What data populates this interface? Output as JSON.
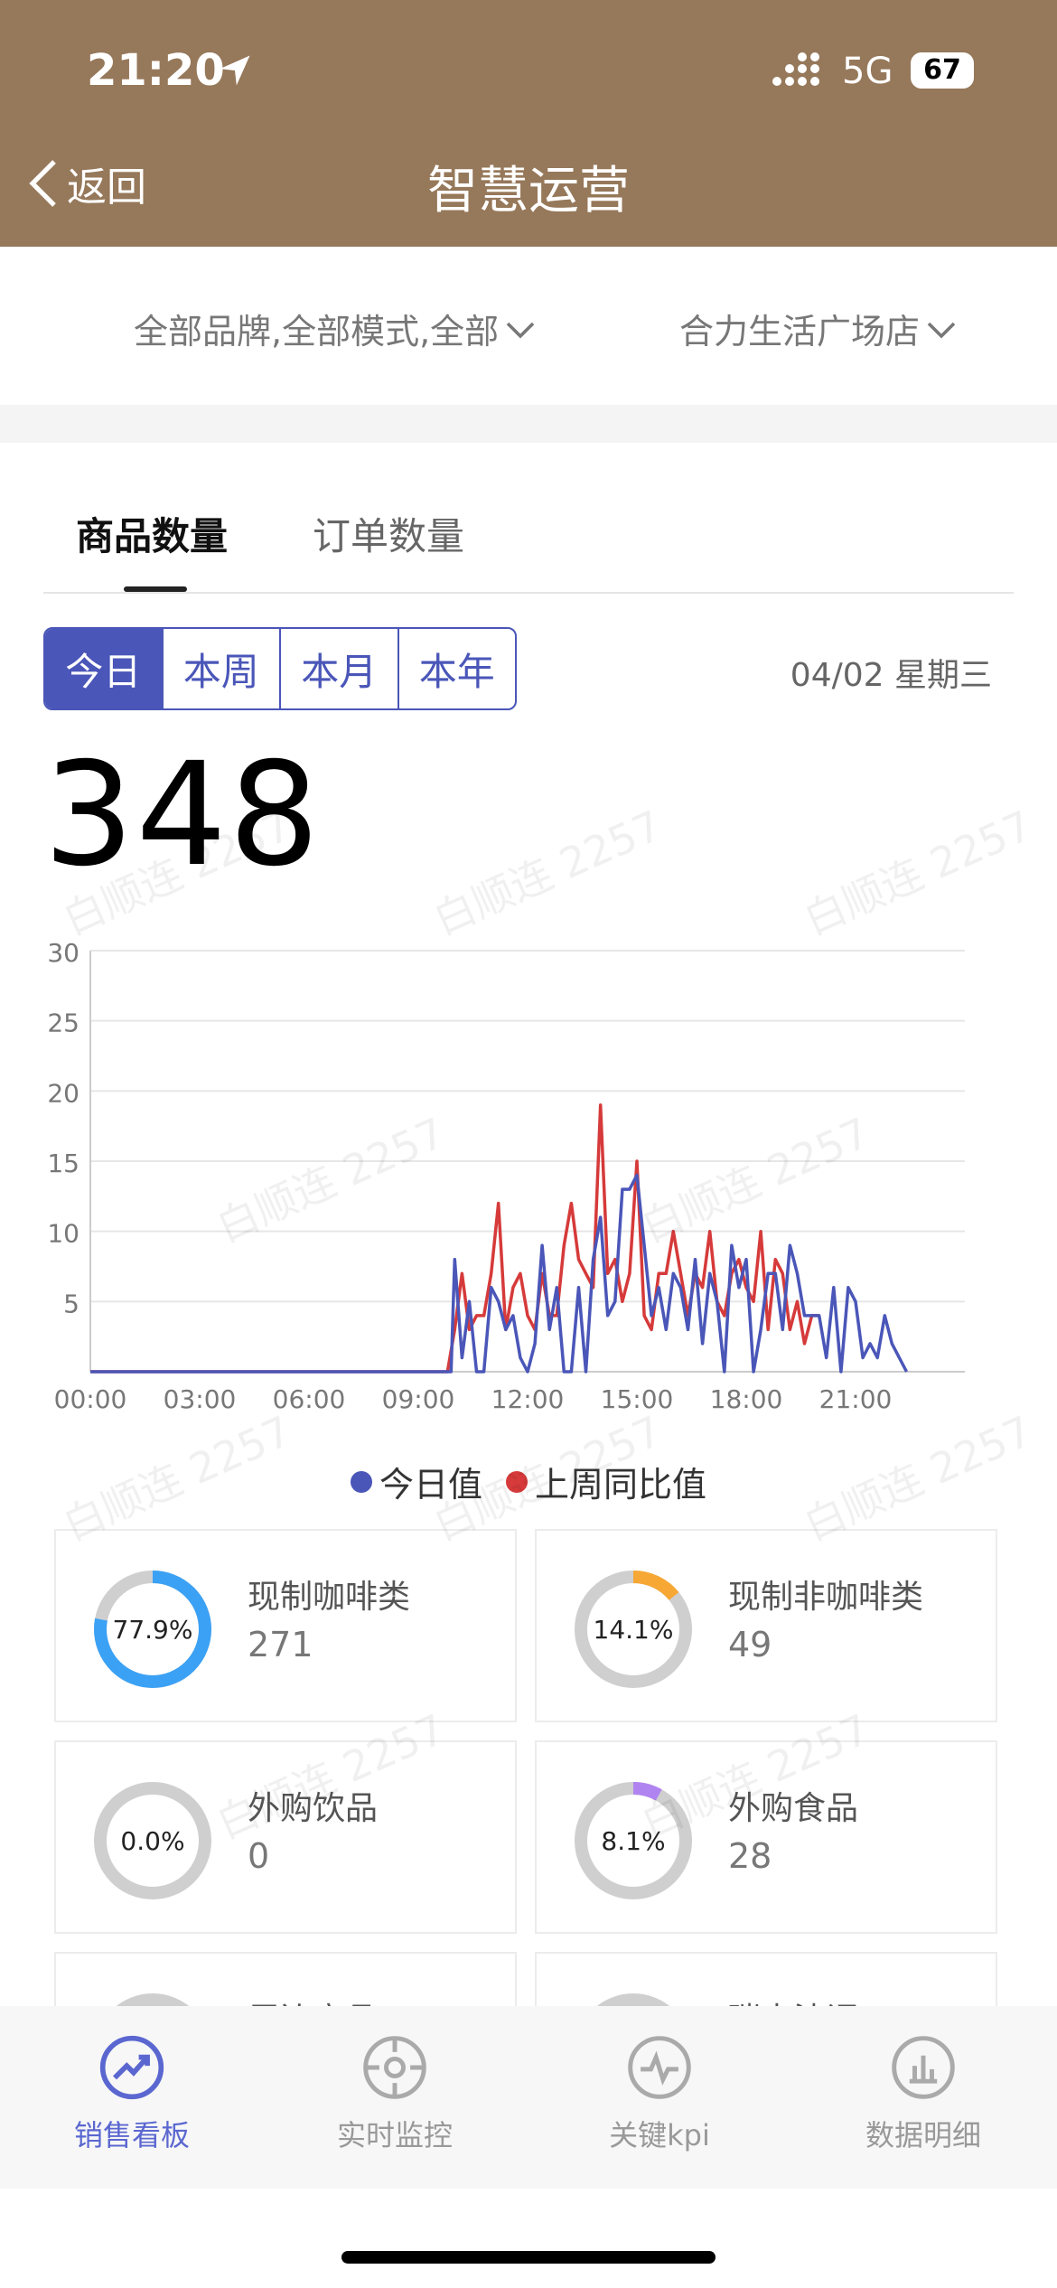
{
  "status_bar": {
    "time": "21:20",
    "network": "5G",
    "battery": "67"
  },
  "header": {
    "back_label": "返回",
    "title": "智慧运营"
  },
  "filters": {
    "brand": "全部品牌,全部模式,全部",
    "store": "合力生活广场店"
  },
  "tabs": [
    "商品数量",
    "订单数量"
  ],
  "periods": [
    "今日",
    "本周",
    "本月",
    "本年"
  ],
  "date": "04/02 星期三",
  "total": "348",
  "chart_data": {
    "type": "line",
    "x_ticks": [
      "00:00",
      "03:00",
      "06:00",
      "09:00",
      "12:00",
      "15:00",
      "18:00",
      "21:00"
    ],
    "y_ticks": [
      "30",
      "25",
      "20",
      "15",
      "10",
      "5"
    ],
    "ylim": [
      0,
      30
    ],
    "xlim_hours": [
      0,
      24
    ],
    "series": [
      {
        "name": "今日值",
        "color": "#4a56b8",
        "points": [
          [
            0,
            0
          ],
          [
            9.9,
            0
          ],
          [
            10.0,
            8
          ],
          [
            10.2,
            1
          ],
          [
            10.4,
            5
          ],
          [
            10.6,
            0
          ],
          [
            10.8,
            0
          ],
          [
            11.0,
            6
          ],
          [
            11.2,
            5
          ],
          [
            11.4,
            3
          ],
          [
            11.6,
            4
          ],
          [
            11.8,
            1
          ],
          [
            12.0,
            0
          ],
          [
            12.2,
            2
          ],
          [
            12.4,
            9
          ],
          [
            12.6,
            3
          ],
          [
            12.8,
            6
          ],
          [
            13.0,
            0
          ],
          [
            13.2,
            0
          ],
          [
            13.4,
            6
          ],
          [
            13.6,
            0
          ],
          [
            13.8,
            8
          ],
          [
            14.0,
            11
          ],
          [
            14.2,
            4
          ],
          [
            14.4,
            5
          ],
          [
            14.6,
            13
          ],
          [
            14.8,
            13
          ],
          [
            15.0,
            14
          ],
          [
            15.2,
            9
          ],
          [
            15.4,
            4
          ],
          [
            15.6,
            6
          ],
          [
            15.8,
            3
          ],
          [
            16.0,
            7
          ],
          [
            16.2,
            6
          ],
          [
            16.4,
            3
          ],
          [
            16.6,
            8
          ],
          [
            16.8,
            2
          ],
          [
            17.0,
            7
          ],
          [
            17.2,
            5
          ],
          [
            17.4,
            0
          ],
          [
            17.6,
            9
          ],
          [
            17.8,
            6
          ],
          [
            18.0,
            8
          ],
          [
            18.2,
            0
          ],
          [
            18.4,
            3
          ],
          [
            18.6,
            7
          ],
          [
            18.8,
            7
          ],
          [
            19.0,
            3
          ],
          [
            19.2,
            9
          ],
          [
            19.4,
            7
          ],
          [
            19.6,
            4
          ],
          [
            19.8,
            4
          ],
          [
            20.0,
            4
          ],
          [
            20.2,
            1
          ],
          [
            20.4,
            6
          ],
          [
            20.6,
            0
          ],
          [
            20.8,
            6
          ],
          [
            21.0,
            5
          ],
          [
            21.2,
            1
          ],
          [
            21.4,
            2
          ],
          [
            21.6,
            1
          ],
          [
            21.8,
            4
          ],
          [
            22.0,
            2
          ],
          [
            22.2,
            1
          ],
          [
            22.4,
            0
          ]
        ]
      },
      {
        "name": "上周同比值",
        "color": "#d63a3a",
        "points": [
          [
            0,
            0
          ],
          [
            9.8,
            0
          ],
          [
            10.0,
            3
          ],
          [
            10.2,
            7
          ],
          [
            10.4,
            3
          ],
          [
            10.6,
            4
          ],
          [
            10.8,
            4
          ],
          [
            11.0,
            7
          ],
          [
            11.2,
            12
          ],
          [
            11.4,
            3
          ],
          [
            11.6,
            6
          ],
          [
            11.8,
            7
          ],
          [
            12.0,
            4
          ],
          [
            12.2,
            3
          ],
          [
            12.4,
            7
          ],
          [
            12.6,
            4
          ],
          [
            12.8,
            4
          ],
          [
            13.0,
            9
          ],
          [
            13.2,
            12
          ],
          [
            13.4,
            8
          ],
          [
            13.6,
            7
          ],
          [
            13.8,
            6
          ],
          [
            14.0,
            19
          ],
          [
            14.2,
            7
          ],
          [
            14.4,
            8
          ],
          [
            14.6,
            5
          ],
          [
            14.8,
            7
          ],
          [
            15.0,
            15
          ],
          [
            15.2,
            4
          ],
          [
            15.4,
            3
          ],
          [
            15.6,
            7
          ],
          [
            15.8,
            7
          ],
          [
            16.0,
            10
          ],
          [
            16.2,
            7
          ],
          [
            16.4,
            4
          ],
          [
            16.6,
            7
          ],
          [
            16.8,
            6
          ],
          [
            17.0,
            10
          ],
          [
            17.2,
            5
          ],
          [
            17.4,
            4
          ],
          [
            17.6,
            7
          ],
          [
            17.8,
            8
          ],
          [
            18.0,
            6
          ],
          [
            18.2,
            5
          ],
          [
            18.4,
            10
          ],
          [
            18.6,
            3
          ],
          [
            18.8,
            8
          ],
          [
            19.0,
            7
          ],
          [
            19.2,
            3
          ],
          [
            19.4,
            5
          ],
          [
            19.6,
            2
          ],
          [
            19.8,
            4
          ],
          [
            20.0,
            4
          ]
        ]
      }
    ]
  },
  "categories": [
    {
      "name": "现制咖啡类",
      "value": "271",
      "percent_label": "77.9%",
      "percent": 77.9,
      "color": "#3ba1f5"
    },
    {
      "name": "现制非咖啡类",
      "value": "49",
      "percent_label": "14.1%",
      "percent": 14.1,
      "color": "#f7a733"
    },
    {
      "name": "外购饮品",
      "value": "0",
      "percent_label": "0.0%",
      "percent": 0.0,
      "color": "#bbbbbb"
    },
    {
      "name": "外购食品",
      "value": "28",
      "percent_label": "8.1%",
      "percent": 8.1,
      "color": "#b084f0"
    },
    {
      "name": "周边商品",
      "value": "",
      "percent_label": "",
      "percent": 0,
      "color": "#bbbbbb"
    },
    {
      "name": "瑞幸法调",
      "value": "",
      "percent_label": "",
      "percent": 0,
      "color": "#bbbbbb"
    }
  ],
  "tabbar": [
    {
      "label": "销售看板",
      "icon": "trend-chart-icon",
      "active": true
    },
    {
      "label": "实时监控",
      "icon": "target-icon",
      "active": false
    },
    {
      "label": "关键kpi",
      "icon": "pulse-icon",
      "active": false
    },
    {
      "label": "数据明细",
      "icon": "bar-chart-icon",
      "active": false
    }
  ],
  "watermark": "白顺连 2257"
}
